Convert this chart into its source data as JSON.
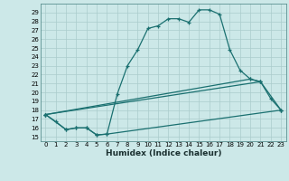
{
  "xlabel": "Humidex (Indice chaleur)",
  "bg_color": "#cce8e8",
  "grid_color": "#aacccc",
  "line_color": "#1a7070",
  "xlim": [
    -0.5,
    23.5
  ],
  "ylim": [
    14.5,
    30.0
  ],
  "yticks": [
    15,
    16,
    17,
    18,
    19,
    20,
    21,
    22,
    23,
    24,
    25,
    26,
    27,
    28,
    29
  ],
  "xticks": [
    0,
    1,
    2,
    3,
    4,
    5,
    6,
    7,
    8,
    9,
    10,
    11,
    12,
    13,
    14,
    15,
    16,
    17,
    18,
    19,
    20,
    21,
    22,
    23
  ],
  "curve1_x": [
    0,
    1,
    2,
    3,
    4,
    5,
    6,
    7,
    8,
    9,
    10,
    11,
    12,
    13,
    14,
    15,
    16,
    17,
    18,
    19,
    20,
    21
  ],
  "curve1_y": [
    17.5,
    16.7,
    15.8,
    16.0,
    16.0,
    15.2,
    15.3,
    19.8,
    23.0,
    24.8,
    27.2,
    27.5,
    28.3,
    28.3,
    27.9,
    29.3,
    29.3,
    28.8,
    24.8,
    22.5,
    21.5,
    21.2
  ],
  "curve2_x": [
    0,
    20,
    21,
    22,
    23
  ],
  "curve2_y": [
    17.5,
    21.5,
    21.2,
    19.3,
    18.0
  ],
  "curve3_x": [
    0,
    21,
    23
  ],
  "curve3_y": [
    17.5,
    21.2,
    18.0
  ],
  "curve4_x": [
    0,
    2,
    3,
    4,
    5,
    6,
    23
  ],
  "curve4_y": [
    17.5,
    15.8,
    16.0,
    16.0,
    15.2,
    15.3,
    18.0
  ]
}
